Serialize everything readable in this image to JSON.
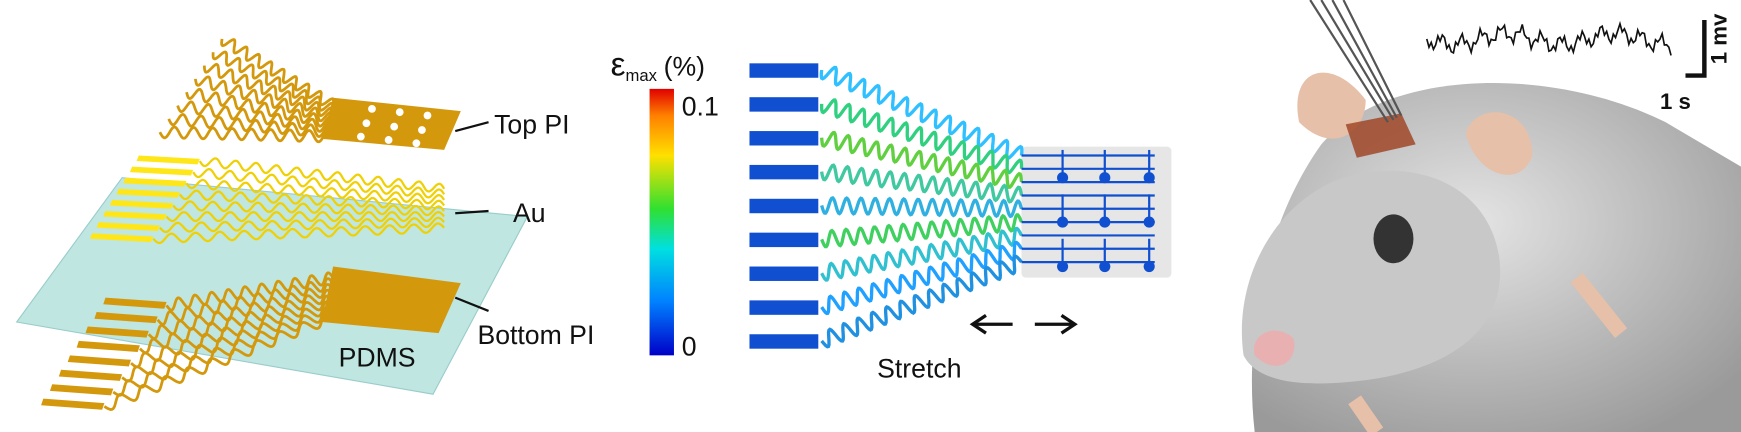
{
  "left_panel": {
    "labels": {
      "top_pi": "Top PI",
      "au": "Au",
      "bottom_pi": "Bottom PI",
      "pdms": "PDMS"
    }
  },
  "middle_panel": {
    "colorbar": {
      "symbol": "ε",
      "subscript": "max",
      "unit": "(%)",
      "top_label": "0.1",
      "bottom_label": "0"
    },
    "arrow_label": "Stretch"
  },
  "right_panel": {
    "scale_bar": {
      "vertical": "1 mv",
      "horizontal": "1 s"
    }
  }
}
